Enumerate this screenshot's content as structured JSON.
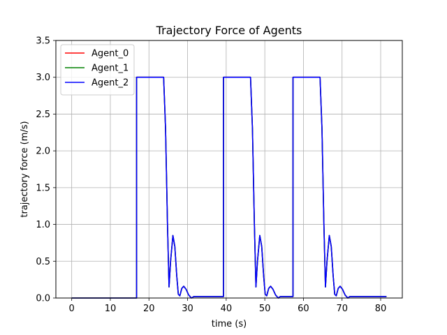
{
  "chart_data": {
    "type": "line",
    "title": "Trajectory Force of Agents",
    "xlabel": "time (s)",
    "ylabel": "trajectory force (m/s)",
    "xlim": [
      -4.1,
      85.6
    ],
    "ylim": [
      0,
      3.5
    ],
    "xticks": [
      0,
      10,
      20,
      30,
      40,
      50,
      60,
      70,
      80
    ],
    "yticks": [
      "0.0",
      "0.5",
      "1.0",
      "1.5",
      "2.0",
      "2.5",
      "3.0",
      "3.5"
    ],
    "grid": true,
    "legend_position": "top-left",
    "series": [
      {
        "name": "Agent_0",
        "color": "#ff0000",
        "x": [
          0,
          16.8,
          16.8,
          23.8,
          24.3,
          24.8,
          25.2,
          25.6,
          26.2,
          26.7,
          27.2,
          27.6,
          28,
          28.5,
          29,
          29.6,
          30.3,
          31,
          31.6,
          32,
          39.3,
          39.3,
          46.3,
          46.8,
          47.3,
          47.7,
          48.1,
          48.7,
          49.2,
          49.7,
          50.1,
          50.5,
          51,
          51.5,
          52.1,
          52.8,
          53.5,
          54,
          57.3,
          57.3,
          64.3,
          64.8,
          65.3,
          65.7,
          66.1,
          66.7,
          67.2,
          67.7,
          68.1,
          68.5,
          69,
          69.5,
          70.1,
          70.8,
          71.5,
          72,
          81.5
        ],
        "y": [
          0,
          0,
          3.0,
          3.0,
          2.3,
          1.0,
          0.15,
          0.5,
          0.85,
          0.7,
          0.3,
          0.05,
          0.03,
          0.13,
          0.16,
          0.12,
          0.04,
          0.0,
          0.02,
          0.02,
          0.02,
          3.0,
          3.0,
          2.3,
          1.0,
          0.15,
          0.5,
          0.85,
          0.7,
          0.3,
          0.05,
          0.03,
          0.13,
          0.16,
          0.12,
          0.04,
          0.0,
          0.02,
          0.02,
          3.0,
          3.0,
          2.3,
          1.0,
          0.15,
          0.5,
          0.85,
          0.7,
          0.3,
          0.05,
          0.03,
          0.13,
          0.16,
          0.12,
          0.04,
          0.0,
          0.02,
          0.02
        ]
      },
      {
        "name": "Agent_1",
        "color": "#008000",
        "x": [
          0,
          16.8,
          16.8,
          23.8,
          24.3,
          24.8,
          25.2,
          25.6,
          26.2,
          26.7,
          27.2,
          27.6,
          28,
          28.5,
          29,
          29.6,
          30.3,
          31,
          31.6,
          32,
          39.3,
          39.3,
          46.3,
          46.8,
          47.3,
          47.7,
          48.1,
          48.7,
          49.2,
          49.7,
          50.1,
          50.5,
          51,
          51.5,
          52.1,
          52.8,
          53.5,
          54,
          57.3,
          57.3,
          64.3,
          64.8,
          65.3,
          65.7,
          66.1,
          66.7,
          67.2,
          67.7,
          68.1,
          68.5,
          69,
          69.5,
          70.1,
          70.8,
          71.5,
          72,
          81.5
        ],
        "y": [
          0,
          0,
          3.0,
          3.0,
          2.3,
          1.0,
          0.15,
          0.5,
          0.85,
          0.7,
          0.3,
          0.05,
          0.03,
          0.13,
          0.16,
          0.12,
          0.04,
          0.0,
          0.02,
          0.02,
          0.02,
          3.0,
          3.0,
          2.3,
          1.0,
          0.15,
          0.5,
          0.85,
          0.7,
          0.3,
          0.05,
          0.03,
          0.13,
          0.16,
          0.12,
          0.04,
          0.0,
          0.02,
          0.02,
          3.0,
          3.0,
          2.3,
          1.0,
          0.15,
          0.5,
          0.85,
          0.7,
          0.3,
          0.05,
          0.03,
          0.13,
          0.16,
          0.12,
          0.04,
          0.0,
          0.02,
          0.02
        ]
      },
      {
        "name": "Agent_2",
        "color": "#0000ff",
        "x": [
          0,
          16.8,
          16.8,
          23.8,
          24.3,
          24.8,
          25.2,
          25.6,
          26.2,
          26.7,
          27.2,
          27.6,
          28,
          28.5,
          29,
          29.6,
          30.3,
          31,
          31.6,
          32,
          39.3,
          39.3,
          46.3,
          46.8,
          47.3,
          47.7,
          48.1,
          48.7,
          49.2,
          49.7,
          50.1,
          50.5,
          51,
          51.5,
          52.1,
          52.8,
          53.5,
          54,
          57.3,
          57.3,
          64.3,
          64.8,
          65.3,
          65.7,
          66.1,
          66.7,
          67.2,
          67.7,
          68.1,
          68.5,
          69,
          69.5,
          70.1,
          70.8,
          71.5,
          72,
          81.5
        ],
        "y": [
          0,
          0,
          3.0,
          3.0,
          2.3,
          1.0,
          0.15,
          0.5,
          0.85,
          0.7,
          0.3,
          0.05,
          0.03,
          0.13,
          0.16,
          0.12,
          0.04,
          0.0,
          0.02,
          0.02,
          0.02,
          3.0,
          3.0,
          2.3,
          1.0,
          0.15,
          0.5,
          0.85,
          0.7,
          0.3,
          0.05,
          0.03,
          0.13,
          0.16,
          0.12,
          0.04,
          0.0,
          0.02,
          0.02,
          3.0,
          3.0,
          2.3,
          1.0,
          0.15,
          0.5,
          0.85,
          0.7,
          0.3,
          0.05,
          0.03,
          0.13,
          0.16,
          0.12,
          0.04,
          0.0,
          0.02,
          0.02
        ]
      }
    ]
  }
}
